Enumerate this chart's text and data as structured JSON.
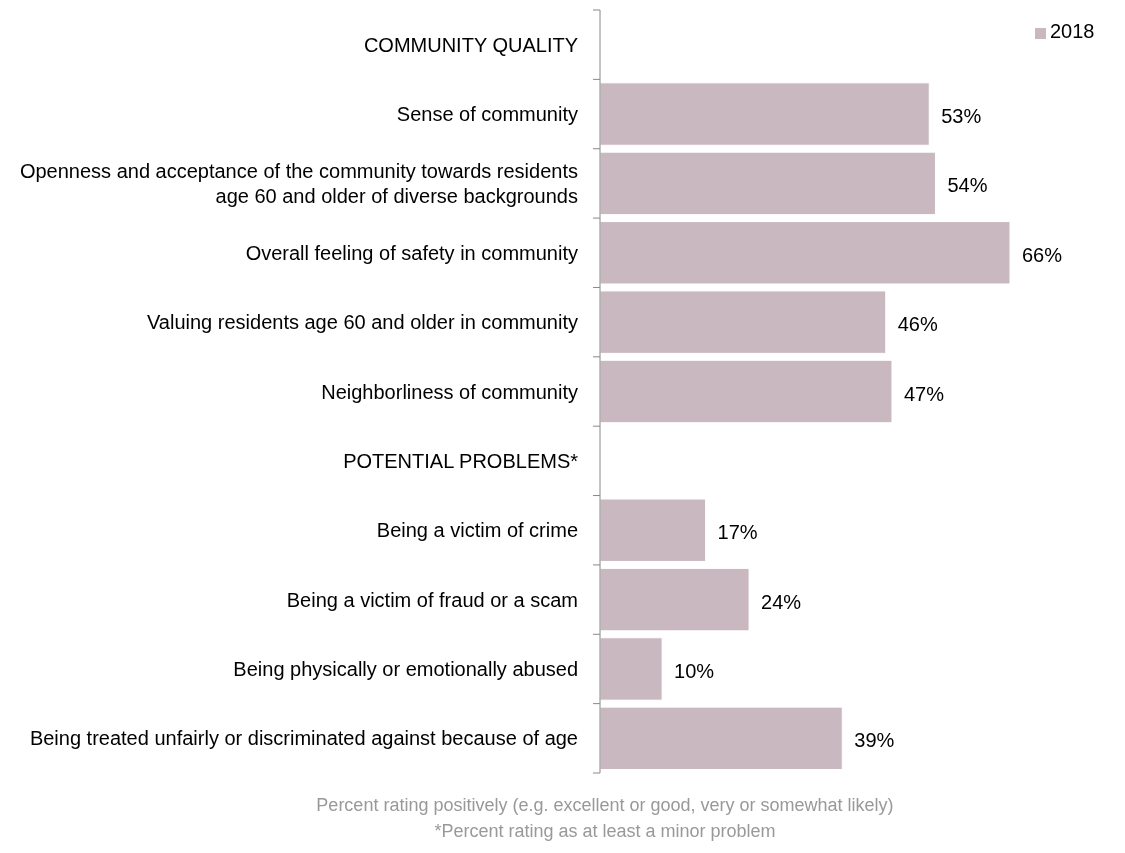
{
  "chart_data": {
    "type": "bar",
    "orientation": "horizontal",
    "legend": "top right",
    "categories": [
      "COMMUNITY QUALITY",
      "Sense of community",
      "Openness and acceptance of the community towards residents age 60 and older of diverse backgrounds",
      "Overall feeling of safety in community",
      "Valuing residents age 60 and older in community",
      "Neighborliness of community",
      "POTENTIAL PROBLEMS*",
      "Being a victim of crime",
      "Being a victim of fraud or a scam",
      "Being physically or emotionally abused",
      "Being treated unfairly or discriminated against because of age"
    ],
    "series": [
      {
        "name": "2018",
        "color": "#c9b8c0",
        "values": [
          null,
          53,
          54,
          66,
          46,
          47,
          null,
          17,
          24,
          10,
          39
        ],
        "value_labels": [
          null,
          "53%",
          "54%",
          "66%",
          "46%",
          "47%",
          null,
          "17%",
          "24%",
          "10%",
          "39%"
        ]
      }
    ],
    "annotations": [
      "Percent rating positively (e.g. excellent or good, very or somewhat likely)",
      "*Percent rating as at least a minor problem"
    ]
  }
}
